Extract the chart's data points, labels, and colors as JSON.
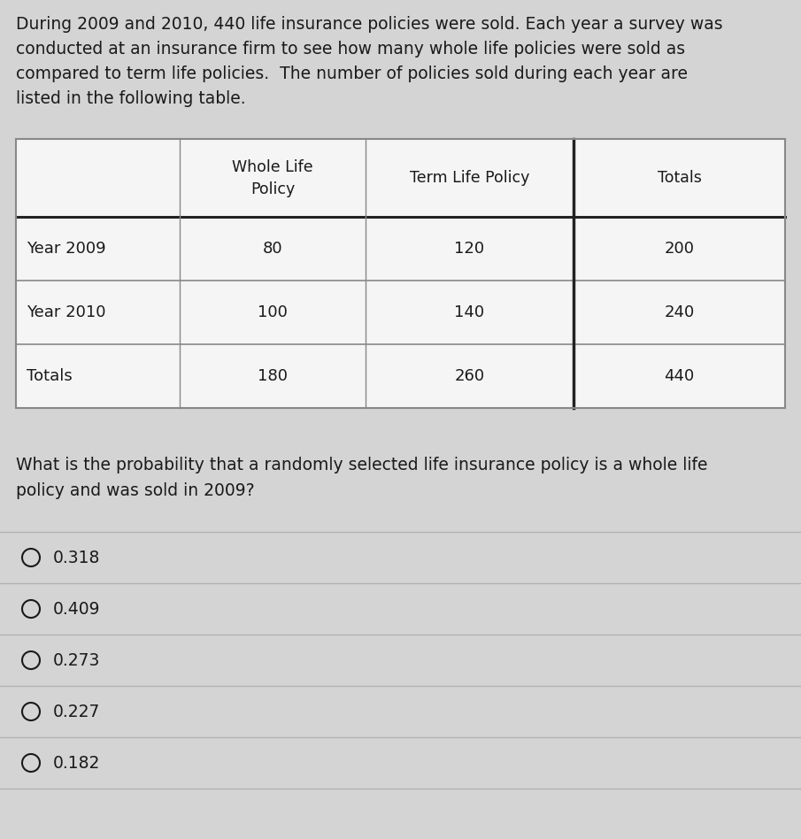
{
  "background_color": "#d4d4d4",
  "paragraph_text": "During 2009 and 2010, 440 life insurance policies were sold. Each year a survey was\nconducted at an insurance firm to see how many whole life policies were sold as\ncompared to term life policies.  The number of policies sold during each year are\nlisted in the following table.",
  "paragraph_fontsize": 13.5,
  "table_col_headers": [
    "",
    "Whole Life\nPolicy",
    "Term Life Policy",
    "Totals"
  ],
  "table_rows": [
    [
      "Year 2009",
      "80",
      "120",
      "200"
    ],
    [
      "Year 2010",
      "100",
      "140",
      "240"
    ],
    [
      "Totals",
      "180",
      "260",
      "440"
    ]
  ],
  "cell_bg": "#f5f5f5",
  "border_color_light": "#888888",
  "border_color_dark": "#222222",
  "header_fontsize": 12.5,
  "cell_fontsize": 13.0,
  "question_text": "What is the probability that a randomly selected life insurance policy is a whole life\npolicy and was sold in 2009?",
  "question_fontsize": 13.5,
  "options": [
    "0.318",
    "0.409",
    "0.273",
    "0.227",
    "0.182"
  ],
  "option_fontsize": 13.5,
  "divider_color": "#b0b0b0",
  "text_color": "#1a1a1a"
}
